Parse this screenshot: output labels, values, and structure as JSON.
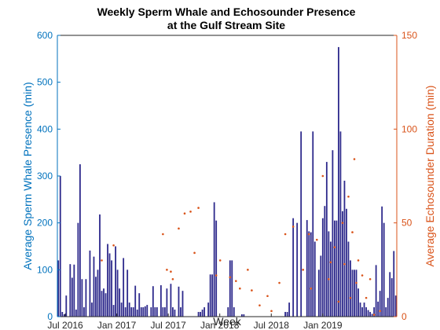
{
  "chart_data": {
    "type": "bar",
    "title": [
      "Weekly Sperm Whale and Echosounder Presence",
      "at the Gulf Stream Site"
    ],
    "xlabel": "Week",
    "ylabel_left": "Average Sperm Whale Presence (min)",
    "ylabel_right": "Average Echosounder Duration (min)",
    "x_ticks": [
      "Jul 2016",
      "Jan 2017",
      "Jul 2017",
      "Jan 2018",
      "Jul 2018",
      "Jan 2019"
    ],
    "ylim_left": [
      0,
      600
    ],
    "ylim_right": [
      0,
      150
    ],
    "yticks_left": [
      "0",
      "100",
      "200",
      "300",
      "400",
      "500",
      "600"
    ],
    "yticks_right": [
      "0",
      "50",
      "100",
      "150"
    ],
    "colors": {
      "bars": "#2E2A8C",
      "dots": "#D95319",
      "left_axis": "#0072BD",
      "right_axis": "#D95319"
    },
    "series": [
      {
        "type": "bar",
        "axis": "left",
        "values": [
          120,
          300,
          10,
          5,
          45,
          0,
          112,
          83,
          111,
          15,
          200,
          325,
          80,
          20,
          80,
          0,
          141,
          30,
          128,
          85,
          100,
          218,
          55,
          60,
          50,
          155,
          135,
          120,
          25,
          150,
          100,
          60,
          30,
          125,
          20,
          100,
          30,
          20,
          20,
          66,
          15,
          50,
          20,
          20,
          22,
          25,
          0,
          20,
          65,
          20,
          20,
          0,
          67,
          20,
          20,
          60,
          0,
          70,
          20,
          15,
          0,
          64,
          20,
          55,
          0,
          0,
          0,
          0,
          0,
          0,
          0,
          10,
          10,
          15,
          20,
          0,
          30,
          90,
          90,
          244,
          205,
          0,
          0,
          0,
          0,
          0,
          20,
          120,
          120,
          20,
          0,
          0,
          0,
          5,
          5,
          0,
          0,
          0,
          0,
          0,
          0,
          0,
          0,
          0,
          0,
          0,
          0,
          0,
          0,
          0,
          0,
          0,
          0,
          0,
          0,
          10,
          10,
          30,
          0,
          210,
          0,
          200,
          0,
          395,
          0,
          0,
          206,
          182,
          180,
          395,
          160,
          0,
          100,
          130,
          210,
          236,
          330,
          182,
          160,
          355,
          205,
          205,
          575,
          395,
          225,
          290,
          230,
          160,
          120,
          100,
          100,
          100,
          60,
          30,
          20,
          30,
          20,
          14,
          10,
          6,
          20,
          110,
          32,
          55,
          235,
          200,
          20,
          40,
          95,
          82,
          140,
          45
        ],
        "values_note": "weekly bars, Jun 2016 – Jun 2019"
      },
      {
        "type": "scatter",
        "axis": "right",
        "points": [
          [
            22,
            30
          ],
          [
            28,
            38
          ],
          [
            53,
            44
          ],
          [
            55,
            25
          ],
          [
            57,
            24
          ],
          [
            58,
            20
          ],
          [
            61,
            47
          ],
          [
            64,
            55
          ],
          [
            67,
            56
          ],
          [
            69,
            34
          ],
          [
            71,
            58
          ],
          [
            80,
            22
          ],
          [
            82,
            30
          ],
          [
            87,
            21
          ],
          [
            90,
            19
          ],
          [
            92,
            15
          ],
          [
            96,
            25
          ],
          [
            98,
            14
          ],
          [
            102,
            6
          ],
          [
            106,
            11
          ],
          [
            108,
            3
          ],
          [
            112,
            18
          ],
          [
            115,
            44
          ],
          [
            119,
            48
          ],
          [
            124,
            25
          ],
          [
            127,
            44
          ],
          [
            128,
            15
          ],
          [
            131,
            41
          ],
          [
            134,
            75
          ],
          [
            137,
            20
          ],
          [
            138,
            29
          ],
          [
            140,
            37
          ],
          [
            142,
            8
          ],
          [
            144,
            50
          ],
          [
            145,
            28
          ],
          [
            147,
            64
          ],
          [
            148,
            10
          ],
          [
            149,
            45
          ],
          [
            150,
            84
          ],
          [
            151,
            18
          ],
          [
            152,
            30
          ],
          [
            154,
            22
          ],
          [
            156,
            10
          ],
          [
            158,
            20
          ],
          [
            160,
            1
          ],
          [
            163,
            3
          ],
          [
            315,
            59
          ],
          [
            323,
            29
          ],
          [
            330,
            53
          ],
          [
            332,
            26
          ],
          [
            336,
            41
          ],
          [
            339,
            58
          ],
          [
            343,
            49
          ],
          [
            346,
            24
          ],
          [
            348,
            50
          ],
          [
            352,
            44
          ],
          [
            355,
            16
          ],
          [
            358,
            16
          ],
          [
            363,
            10
          ],
          [
            366,
            21
          ],
          [
            369,
            7
          ],
          [
            372,
            3
          ],
          [
            375,
            17
          ]
        ],
        "points_note": "x = week index, y = echosounder duration (min)"
      }
    ]
  }
}
